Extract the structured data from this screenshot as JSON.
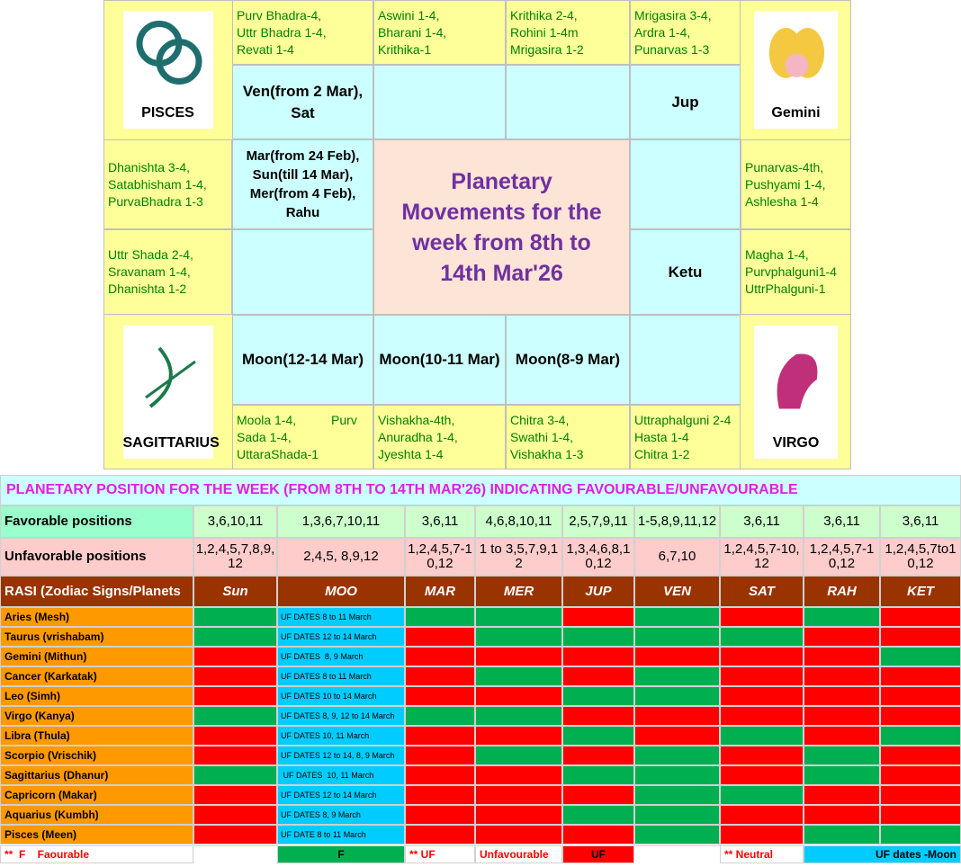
{
  "rasi_chart": {
    "sign_labels": [
      "PISCES",
      "Gemini",
      "SAGITTARIUS",
      "VIRGO"
    ],
    "nakshatras": [
      "Purv Bhadra-4,\nUttr Bhadra 1-4,\nRevati 1-4",
      "Aswini 1-4,\nBharani 1-4,\nKrithika-1",
      "Krithika 2-4,\nRohini 1-4m\nMrigasira 1-2",
      "Mrigasira 3-4,\nArdra 1-4,\nPunarvas 1-3",
      "Punarvas-4th,\nPushyami 1-4,\nAshlesha 1-4",
      "Magha 1-4,\nPurvphalguni1-4\nUttrPhalguni-1",
      "Moola 1-4,          Purv\nSada 1-4,\nUttaraShada-1",
      "Vishakha-4th,\nAnuradha 1-4,\nJyeshta 1-4",
      "Chitra 3-4,\nSwathi 1-4,\nVishakha 1-3",
      "Uttraphalguni 2-4\nHasta 1-4\nChitra 1-2",
      "Dhanishta 3-4,\nSatabhisham 1-4,\nPurvaBhadra 1-3",
      "Uttr Shada 2-4,\nSravanam 1-4,\nDhanishta 1-2"
    ],
    "planets": [
      "Ven(from 2 Mar), Sat",
      "Jup",
      "Ketu",
      "Moon(12-14 Mar)",
      "Moon(10-11 Mar)",
      "Moon(8-9 Mar)",
      "Mar(from 24 Feb), Sun(till 14 Mar), Mer(from 4 Feb), Rahu"
    ],
    "center_title": "Planetary Movements for the week from 8th to 14th Mar'26"
  },
  "position_table": {
    "title": "PLANETARY POSITION FOR THE WEEK (FROM 8TH TO 14TH MAR'26) INDICATING FAVOURABLE/UNFAVOURABLE",
    "favorable_label": "Favorable positions",
    "favorable": [
      "3,6,10,11",
      "1,3,6,7,10,11",
      "3,6,11",
      "4,6,8,10,11",
      "2,5,7,9,11",
      "1-5,8,9,11,12",
      "3,6,11",
      "3,6,11",
      "3,6,11"
    ],
    "unfavorable_label": "Unfavorable positions",
    "unfavorable": [
      "1,2,4,5,7,8,9,12",
      "2,4,5, 8,9,12",
      "1,2,4,5,7-10,12",
      "1 to 3,5,7,9,12",
      "1,3,4,6,8,10,12",
      "6,7,10",
      "1,2,4,5,7-10,12",
      "1,2,4,5,7-10,12",
      "1,2,4,5,7to10,12"
    ],
    "header_label": "RASI (Zodiac Signs/Planets",
    "planets": [
      "Sun",
      "MOO",
      "MAR",
      "MER",
      "JUP",
      "VEN",
      "SAT",
      "RAH",
      "KET"
    ],
    "palette": {
      "f": "#00b050",
      "u": "#ff0000",
      "moon": "#00ccff"
    },
    "rows": [
      {
        "rasi": "Aries (Mesh)",
        "moon": "UF DATES 8 to 11 March",
        "status": [
          "f",
          "f",
          "f",
          "u",
          "f",
          "u",
          "f",
          "u"
        ]
      },
      {
        "rasi": "Taurus (vrishabam)",
        "moon": "UF DATES 12 to 14 March",
        "status": [
          "f",
          "u",
          "f",
          "f",
          "f",
          "f",
          "u",
          "u"
        ]
      },
      {
        "rasi": "Gemini (Mithun)",
        "moon": "UF DATES  8, 9 March",
        "status": [
          "u",
          "u",
          "u",
          "u",
          "u",
          "u",
          "u",
          "f"
        ]
      },
      {
        "rasi": "Cancer (Karkatak)",
        "moon": "UF DATES 8 to 11 March",
        "status": [
          "u",
          "u",
          "f",
          "u",
          "f",
          "u",
          "u",
          "u"
        ]
      },
      {
        "rasi": "Leo (Simh)",
        "moon": "UF DATES 10 to 14 March",
        "status": [
          "u",
          "u",
          "u",
          "f",
          "f",
          "u",
          "u",
          "u"
        ]
      },
      {
        "rasi": "Virgo (Kanya)",
        "moon": "UF DATES 8, 9, 12 to 14 March",
        "status": [
          "f",
          "f",
          "f",
          "u",
          "u",
          "u",
          "u",
          "u"
        ]
      },
      {
        "rasi": "Libra (Thula)",
        "moon": "UF DATES 10, 11 March",
        "status": [
          "u",
          "u",
          "u",
          "f",
          "u",
          "f",
          "u",
          "f"
        ]
      },
      {
        "rasi": "Scorpio (Vrischik)",
        "moon": "UF DATES 12 to 14, 8, 9 March",
        "status": [
          "u",
          "u",
          "f",
          "u",
          "f",
          "u",
          "f",
          "u"
        ]
      },
      {
        "rasi": "Sagittarius (Dhanur)",
        "moon": " UF DATES  10, 11 March",
        "status": [
          "f",
          "u",
          "u",
          "f",
          "f",
          "u",
          "f",
          "u"
        ]
      },
      {
        "rasi": "Capricorn (Makar)",
        "moon": "UF DATES 12 to 14 March",
        "status": [
          "u",
          "u",
          "u",
          "u",
          "f",
          "f",
          "u",
          "u"
        ]
      },
      {
        "rasi": "Aquarius (Kumbh)",
        "moon": "UF DATES 8, 9 March",
        "status": [
          "u",
          "u",
          "u",
          "f",
          "f",
          "u",
          "u",
          "u"
        ]
      },
      {
        "rasi": "Pisces (Meen)",
        "moon": "UF DATE 8 to 11 March",
        "status": [
          "u",
          "u",
          "u",
          "u",
          "f",
          "u",
          "f",
          "f"
        ]
      }
    ],
    "legend": [
      "**  F    Faourable",
      "F",
      "** UF",
      "Unfavourable",
      "UF",
      "** Neutral",
      "UF dates -Moon"
    ]
  }
}
